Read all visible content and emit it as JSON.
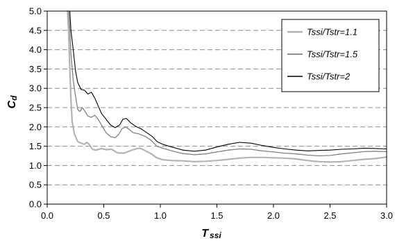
{
  "chart_data": {
    "type": "line",
    "title": "",
    "xlabel": "T",
    "xlabel_sub": "ssi",
    "ylabel": "C",
    "ylabel_sub": "d",
    "xlim": [
      0,
      3
    ],
    "ylim": [
      0,
      5
    ],
    "x_ticks": [
      "0.0",
      "0.5",
      "1.0",
      "1.5",
      "2.0",
      "2.5",
      "3.0"
    ],
    "y_ticks": [
      "0.0",
      "0.5",
      "1.0",
      "1.5",
      "2.0",
      "2.5",
      "3.0",
      "3.5",
      "4.0",
      "4.5",
      "5.0"
    ],
    "grid": "horizontal dashed",
    "legend_position": "top-right",
    "series": [
      {
        "name": "Tssi/Tstr=1.1",
        "color": "#b3b3b3",
        "width": 2.2,
        "points": [
          [
            0.18,
            5.0
          ],
          [
            0.19,
            4.4
          ],
          [
            0.2,
            3.5
          ],
          [
            0.21,
            2.7
          ],
          [
            0.22,
            2.15
          ],
          [
            0.24,
            1.82
          ],
          [
            0.27,
            1.62
          ],
          [
            0.3,
            1.58
          ],
          [
            0.33,
            1.55
          ],
          [
            0.35,
            1.6
          ],
          [
            0.37,
            1.55
          ],
          [
            0.4,
            1.42
          ],
          [
            0.43,
            1.4
          ],
          [
            0.48,
            1.44
          ],
          [
            0.52,
            1.41
          ],
          [
            0.57,
            1.42
          ],
          [
            0.62,
            1.33
          ],
          [
            0.68,
            1.32
          ],
          [
            0.73,
            1.38
          ],
          [
            0.78,
            1.43
          ],
          [
            0.82,
            1.45
          ],
          [
            0.87,
            1.38
          ],
          [
            0.92,
            1.3
          ],
          [
            0.97,
            1.2
          ],
          [
            1.02,
            1.15
          ],
          [
            1.1,
            1.13
          ],
          [
            1.2,
            1.12
          ],
          [
            1.3,
            1.1
          ],
          [
            1.4,
            1.11
          ],
          [
            1.5,
            1.13
          ],
          [
            1.6,
            1.16
          ],
          [
            1.7,
            1.19
          ],
          [
            1.8,
            1.21
          ],
          [
            1.9,
            1.21
          ],
          [
            2.0,
            1.2
          ],
          [
            2.1,
            1.19
          ],
          [
            2.2,
            1.17
          ],
          [
            2.3,
            1.13
          ],
          [
            2.4,
            1.1
          ],
          [
            2.5,
            1.09
          ],
          [
            2.6,
            1.1
          ],
          [
            2.7,
            1.13
          ],
          [
            2.8,
            1.16
          ],
          [
            2.9,
            1.18
          ],
          [
            3.0,
            1.22
          ]
        ]
      },
      {
        "name": "Tssi/Tstr=1.5",
        "color": "#808080",
        "width": 1.3,
        "points": [
          [
            0.19,
            5.0
          ],
          [
            0.2,
            4.5
          ],
          [
            0.21,
            3.9
          ],
          [
            0.23,
            3.2
          ],
          [
            0.25,
            2.8
          ],
          [
            0.27,
            2.45
          ],
          [
            0.29,
            2.4
          ],
          [
            0.31,
            2.5
          ],
          [
            0.33,
            2.42
          ],
          [
            0.36,
            2.28
          ],
          [
            0.39,
            2.25
          ],
          [
            0.42,
            2.3
          ],
          [
            0.45,
            2.2
          ],
          [
            0.48,
            2.05
          ],
          [
            0.52,
            1.85
          ],
          [
            0.56,
            1.75
          ],
          [
            0.6,
            1.72
          ],
          [
            0.63,
            1.8
          ],
          [
            0.66,
            1.95
          ],
          [
            0.69,
            2.0
          ],
          [
            0.72,
            1.95
          ],
          [
            0.76,
            1.85
          ],
          [
            0.81,
            1.82
          ],
          [
            0.87,
            1.75
          ],
          [
            0.92,
            1.65
          ],
          [
            0.97,
            1.5
          ],
          [
            1.02,
            1.45
          ],
          [
            1.1,
            1.38
          ],
          [
            1.2,
            1.31
          ],
          [
            1.3,
            1.28
          ],
          [
            1.4,
            1.3
          ],
          [
            1.5,
            1.35
          ],
          [
            1.6,
            1.4
          ],
          [
            1.7,
            1.43
          ],
          [
            1.8,
            1.42
          ],
          [
            1.9,
            1.38
          ],
          [
            2.0,
            1.35
          ],
          [
            2.1,
            1.32
          ],
          [
            2.2,
            1.3
          ],
          [
            2.3,
            1.27
          ],
          [
            2.4,
            1.25
          ],
          [
            2.5,
            1.26
          ],
          [
            2.6,
            1.3
          ],
          [
            2.7,
            1.33
          ],
          [
            2.8,
            1.36
          ],
          [
            2.9,
            1.37
          ],
          [
            3.0,
            1.36
          ]
        ]
      },
      {
        "name": "Tssi/Tstr=2",
        "color": "#000000",
        "width": 1.1,
        "points": [
          [
            0.2,
            5.0
          ],
          [
            0.21,
            4.5
          ],
          [
            0.23,
            4.0
          ],
          [
            0.25,
            3.45
          ],
          [
            0.27,
            3.15
          ],
          [
            0.3,
            2.97
          ],
          [
            0.33,
            2.95
          ],
          [
            0.36,
            2.85
          ],
          [
            0.39,
            2.9
          ],
          [
            0.42,
            2.75
          ],
          [
            0.45,
            2.55
          ],
          [
            0.48,
            2.35
          ],
          [
            0.52,
            2.2
          ],
          [
            0.56,
            2.05
          ],
          [
            0.6,
            1.98
          ],
          [
            0.64,
            2.05
          ],
          [
            0.67,
            2.2
          ],
          [
            0.7,
            2.22
          ],
          [
            0.74,
            2.1
          ],
          [
            0.78,
            2.02
          ],
          [
            0.83,
            1.95
          ],
          [
            0.88,
            1.85
          ],
          [
            0.93,
            1.75
          ],
          [
            0.97,
            1.62
          ],
          [
            1.02,
            1.55
          ],
          [
            1.1,
            1.48
          ],
          [
            1.2,
            1.4
          ],
          [
            1.3,
            1.37
          ],
          [
            1.4,
            1.4
          ],
          [
            1.5,
            1.48
          ],
          [
            1.6,
            1.55
          ],
          [
            1.7,
            1.6
          ],
          [
            1.8,
            1.58
          ],
          [
            1.9,
            1.52
          ],
          [
            2.0,
            1.47
          ],
          [
            2.1,
            1.43
          ],
          [
            2.2,
            1.4
          ],
          [
            2.3,
            1.38
          ],
          [
            2.4,
            1.39
          ],
          [
            2.5,
            1.4
          ],
          [
            2.6,
            1.42
          ],
          [
            2.7,
            1.43
          ],
          [
            2.8,
            1.45
          ],
          [
            2.9,
            1.44
          ],
          [
            3.0,
            1.43
          ]
        ]
      }
    ]
  }
}
